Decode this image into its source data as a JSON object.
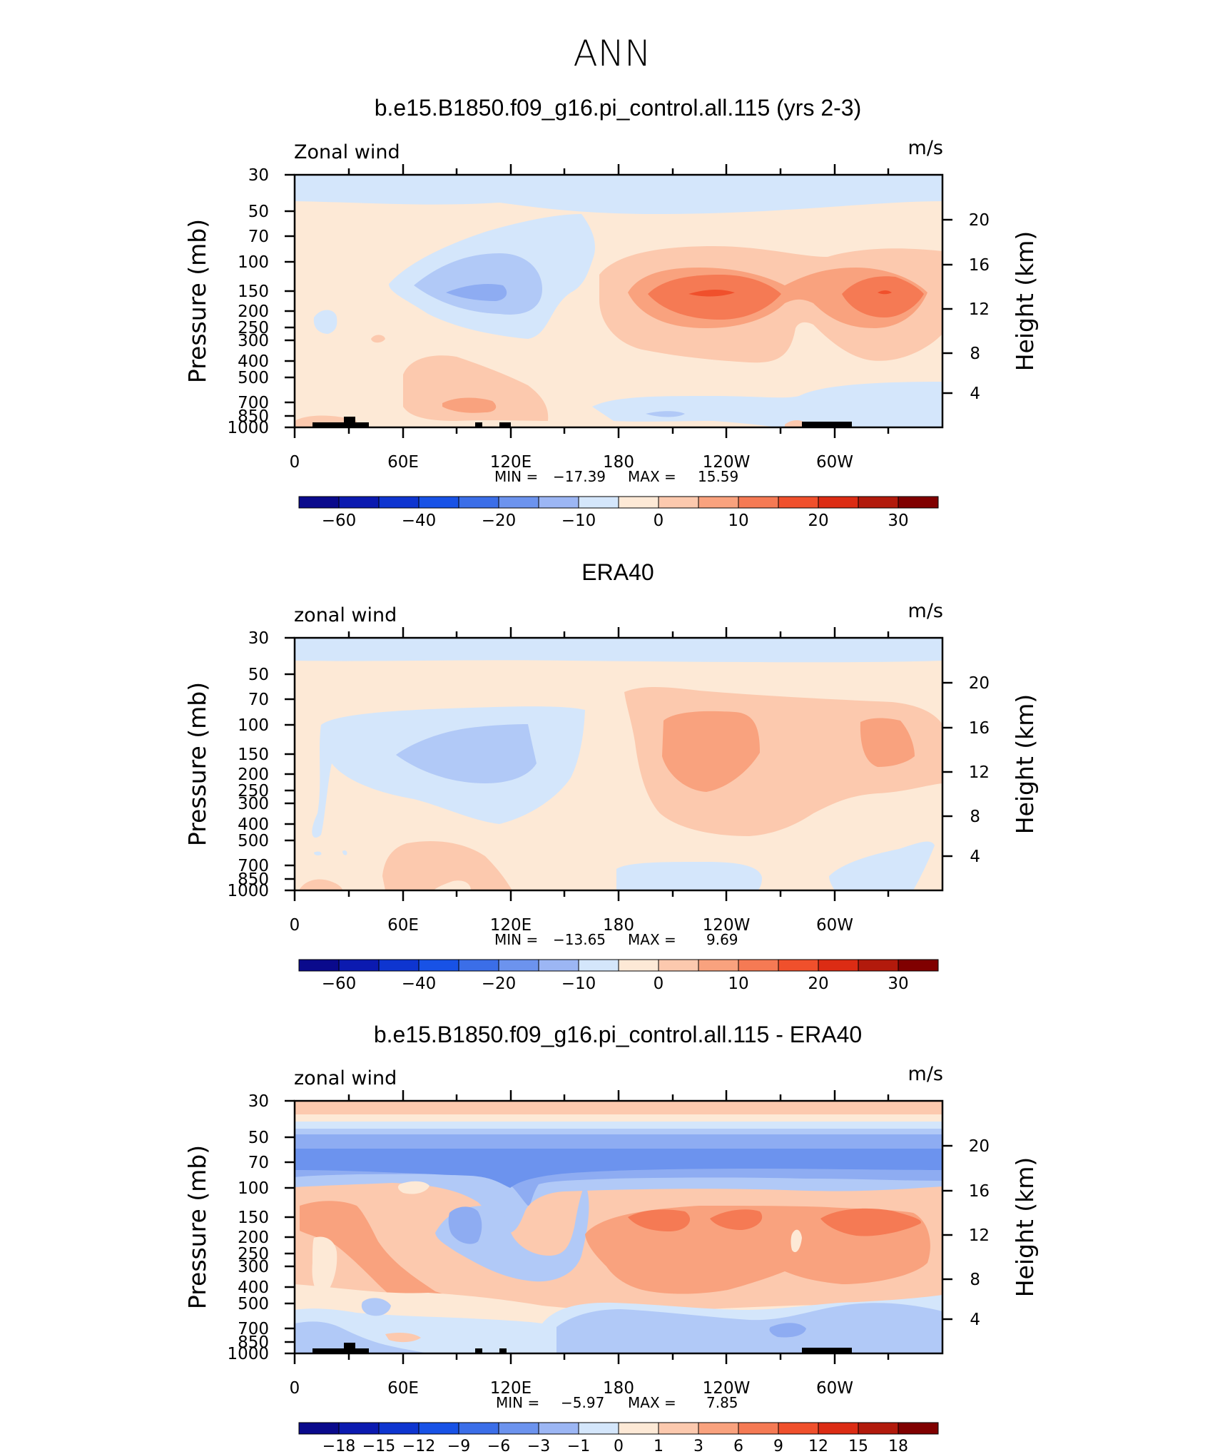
{
  "figure": {
    "title": "ANN"
  },
  "chart_data": [
    {
      "type": "contour",
      "title": "b.e15.B1850.f09_g16.pi_control.all.115 (yrs 2-3)",
      "variable_label": "Zonal wind",
      "units": "m/s",
      "ylabel": "Pressure (mb)",
      "ylabel_right": "Height (km)",
      "x_ticks": [
        "0",
        "60E",
        "120E",
        "180",
        "120W",
        "60W"
      ],
      "y_ticks": [
        "30",
        "50",
        "70",
        "100",
        "150",
        "200",
        "250",
        "300",
        "400",
        "500",
        "700",
        "850",
        "1000"
      ],
      "y_ticks_right": [
        "20",
        "16",
        "12",
        "8",
        "4"
      ],
      "ylim_mb": [
        1000,
        30
      ],
      "xlim_deg": [
        0,
        360
      ],
      "stats": {
        "min_label": "MIN =",
        "min": "−17.39",
        "max_label": "MAX =",
        "max": "15.59"
      },
      "colorbar": {
        "labels": [
          "−60",
          "−40",
          "−20",
          "−10",
          "0",
          "10",
          "20",
          "30"
        ]
      }
    },
    {
      "type": "contour",
      "title": "ERA40",
      "variable_label": "zonal wind",
      "units": "m/s",
      "ylabel": "Pressure (mb)",
      "ylabel_right": "Height (km)",
      "x_ticks": [
        "0",
        "60E",
        "120E",
        "180",
        "120W",
        "60W"
      ],
      "y_ticks": [
        "30",
        "50",
        "70",
        "100",
        "150",
        "200",
        "250",
        "300",
        "400",
        "500",
        "700",
        "850",
        "1000"
      ],
      "y_ticks_right": [
        "20",
        "16",
        "12",
        "8",
        "4"
      ],
      "ylim_mb": [
        1000,
        30
      ],
      "xlim_deg": [
        0,
        360
      ],
      "stats": {
        "min_label": "MIN =",
        "min": "−13.65",
        "max_label": "MAX =",
        "max": "9.69"
      },
      "colorbar": {
        "labels": [
          "−60",
          "−40",
          "−20",
          "−10",
          "0",
          "10",
          "20",
          "30"
        ]
      }
    },
    {
      "type": "contour",
      "title": "b.e15.B1850.f09_g16.pi_control.all.115 - ERA40",
      "variable_label": "zonal wind",
      "units": "m/s",
      "ylabel": "Pressure (mb)",
      "ylabel_right": "Height (km)",
      "x_ticks": [
        "0",
        "60E",
        "120E",
        "180",
        "120W",
        "60W"
      ],
      "y_ticks": [
        "30",
        "50",
        "70",
        "100",
        "150",
        "200",
        "250",
        "300",
        "400",
        "500",
        "700",
        "850",
        "1000"
      ],
      "y_ticks_right": [
        "20",
        "16",
        "12",
        "8",
        "4"
      ],
      "ylim_mb": [
        1000,
        30
      ],
      "xlim_deg": [
        0,
        360
      ],
      "stats": {
        "min_label": "MIN =",
        "min": "−5.97",
        "max_label": "MAX =",
        "max": "7.85"
      },
      "colorbar": {
        "labels": [
          "−18",
          "−15",
          "−12",
          "−9",
          "−6",
          "−3",
          "−1",
          "0",
          "1",
          "3",
          "6",
          "9",
          "12",
          "15",
          "18"
        ]
      }
    }
  ],
  "colors": {
    "colorbar_swatches": [
      "#0a0a8c",
      "#0b1ab0",
      "#0e35d0",
      "#1852e6",
      "#3b6ee8",
      "#6c93ee",
      "#9cb6f4",
      "#d4e6fb",
      "#fde9d6",
      "#fcc9ae",
      "#f9a27e",
      "#f57a54",
      "#f0502c",
      "#dc2c14",
      "#b21a0c",
      "#800000"
    ],
    "neg1": "#d4e6fb",
    "neg2": "#b1c9f7",
    "neg3": "#8eacf2",
    "neg4": "#6c93ee",
    "pos1": "#fde9d6",
    "pos2": "#fcc9ae",
    "pos3": "#f9a27e",
    "pos4": "#f57a54",
    "pos5": "#f0502c",
    "topography": "#000000"
  }
}
